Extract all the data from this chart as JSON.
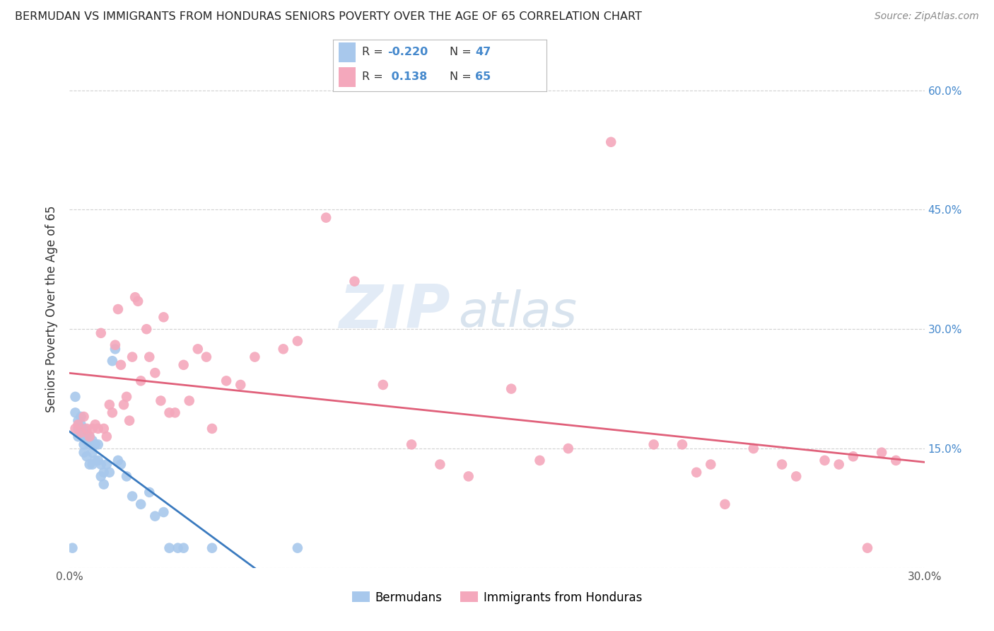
{
  "title": "BERMUDAN VS IMMIGRANTS FROM HONDURAS SENIORS POVERTY OVER THE AGE OF 65 CORRELATION CHART",
  "source": "Source: ZipAtlas.com",
  "ylabel": "Seniors Poverty Over the Age of 65",
  "xlim": [
    0.0,
    0.3
  ],
  "ylim": [
    0.0,
    0.65
  ],
  "xtick_vals": [
    0.0,
    0.05,
    0.1,
    0.15,
    0.2,
    0.25,
    0.3
  ],
  "xtick_labels": [
    "0.0%",
    "",
    "",
    "",
    "",
    "",
    "30.0%"
  ],
  "ytick_vals": [
    0.0,
    0.15,
    0.3,
    0.45,
    0.6
  ],
  "ytick_labels_left": [
    "",
    "",
    "",
    "",
    ""
  ],
  "ytick_labels_right": [
    "",
    "15.0%",
    "30.0%",
    "45.0%",
    "60.0%"
  ],
  "bermuda_R": -0.22,
  "bermuda_N": 47,
  "honduras_R": 0.138,
  "honduras_N": 65,
  "bermuda_color": "#a8c8ec",
  "honduras_color": "#f4a8bc",
  "bermuda_line_color": "#3a7abf",
  "honduras_line_color": "#e0607a",
  "watermark_zip": "ZIP",
  "watermark_atlas": "atlas",
  "bermuda_x": [
    0.001,
    0.002,
    0.002,
    0.003,
    0.003,
    0.003,
    0.004,
    0.004,
    0.004,
    0.005,
    0.005,
    0.005,
    0.005,
    0.006,
    0.006,
    0.006,
    0.007,
    0.007,
    0.007,
    0.008,
    0.008,
    0.008,
    0.009,
    0.009,
    0.01,
    0.01,
    0.011,
    0.011,
    0.012,
    0.012,
    0.013,
    0.014,
    0.015,
    0.016,
    0.017,
    0.018,
    0.02,
    0.022,
    0.025,
    0.028,
    0.03,
    0.033,
    0.035,
    0.038,
    0.04,
    0.05,
    0.08
  ],
  "bermuda_y": [
    0.025,
    0.195,
    0.215,
    0.165,
    0.175,
    0.185,
    0.17,
    0.18,
    0.19,
    0.145,
    0.155,
    0.165,
    0.175,
    0.14,
    0.16,
    0.17,
    0.13,
    0.155,
    0.165,
    0.13,
    0.145,
    0.16,
    0.135,
    0.155,
    0.135,
    0.155,
    0.115,
    0.13,
    0.105,
    0.12,
    0.13,
    0.12,
    0.26,
    0.275,
    0.135,
    0.13,
    0.115,
    0.09,
    0.08,
    0.095,
    0.065,
    0.07,
    0.025,
    0.025,
    0.025,
    0.025,
    0.025
  ],
  "honduras_x": [
    0.002,
    0.003,
    0.004,
    0.005,
    0.006,
    0.007,
    0.008,
    0.009,
    0.01,
    0.011,
    0.012,
    0.013,
    0.014,
    0.015,
    0.016,
    0.017,
    0.018,
    0.019,
    0.02,
    0.021,
    0.022,
    0.023,
    0.024,
    0.025,
    0.027,
    0.028,
    0.03,
    0.032,
    0.033,
    0.035,
    0.037,
    0.04,
    0.042,
    0.045,
    0.048,
    0.05,
    0.055,
    0.06,
    0.065,
    0.075,
    0.08,
    0.09,
    0.1,
    0.11,
    0.12,
    0.13,
    0.14,
    0.155,
    0.165,
    0.175,
    0.19,
    0.205,
    0.215,
    0.22,
    0.225,
    0.23,
    0.24,
    0.25,
    0.255,
    0.265,
    0.27,
    0.275,
    0.28,
    0.285,
    0.29
  ],
  "honduras_y": [
    0.175,
    0.18,
    0.17,
    0.19,
    0.175,
    0.165,
    0.175,
    0.18,
    0.175,
    0.295,
    0.175,
    0.165,
    0.205,
    0.195,
    0.28,
    0.325,
    0.255,
    0.205,
    0.215,
    0.185,
    0.265,
    0.34,
    0.335,
    0.235,
    0.3,
    0.265,
    0.245,
    0.21,
    0.315,
    0.195,
    0.195,
    0.255,
    0.21,
    0.275,
    0.265,
    0.175,
    0.235,
    0.23,
    0.265,
    0.275,
    0.285,
    0.44,
    0.36,
    0.23,
    0.155,
    0.13,
    0.115,
    0.225,
    0.135,
    0.15,
    0.535,
    0.155,
    0.155,
    0.12,
    0.13,
    0.08,
    0.15,
    0.13,
    0.115,
    0.135,
    0.13,
    0.14,
    0.025,
    0.145,
    0.135
  ]
}
